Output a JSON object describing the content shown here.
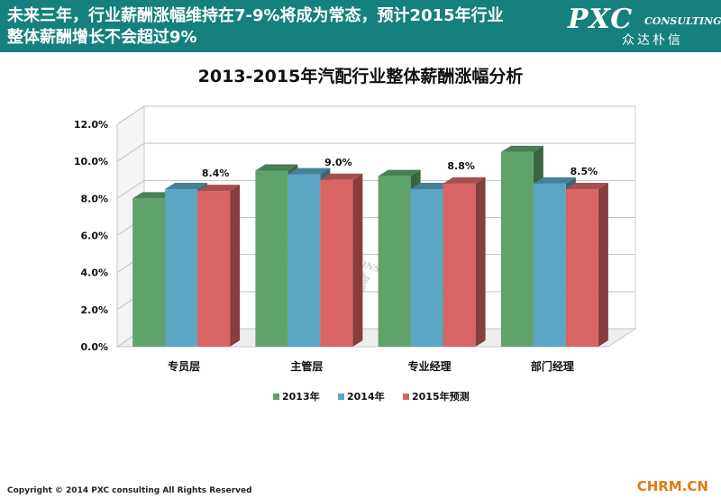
{
  "header": {
    "line1": "未来三年，行业薪酬涨幅维持在7-9%将成为常态，预计2015年行业",
    "line2": "整体薪酬增长不会超过9%"
  },
  "logo": {
    "pxc": "PXC",
    "consulting": "CONSULTING",
    "cn": "众达朴信"
  },
  "watermark": {
    "pxc": "PXC",
    "consulting": "CONSULTING",
    "cn": "众达朴信"
  },
  "footer": {
    "copyright": "Copyright © 2014  PXC consulting All Rights Reserved"
  },
  "source": "CHRM.CN",
  "colors": {
    "header_bg": "#16807f",
    "series_2013": "#5fa36a",
    "series_2014": "#5aa6c4",
    "series_2015": "#d96464"
  },
  "chart_data": {
    "type": "bar",
    "title": "2013-2015年汽配行业整体薪酬涨幅分析",
    "categories": [
      "专员层",
      "主管层",
      "专业经理",
      "部门经理"
    ],
    "series": [
      {
        "name": "2013年",
        "values": [
          0.08,
          0.095,
          0.092,
          0.105
        ]
      },
      {
        "name": "2014年",
        "values": [
          0.085,
          0.093,
          0.085,
          0.088
        ]
      },
      {
        "name": "2015年预测",
        "values": [
          0.084,
          0.09,
          0.088,
          0.085
        ]
      }
    ],
    "data_labels": [
      "8.4%",
      "9.0%",
      "8.8%",
      "8.5%"
    ],
    "yticks": [
      "0.0%",
      "2.0%",
      "4.0%",
      "6.0%",
      "8.0%",
      "10.0%",
      "12.0%"
    ],
    "ylim": [
      0,
      0.12
    ],
    "grid": true,
    "legend_position": "bottom"
  }
}
